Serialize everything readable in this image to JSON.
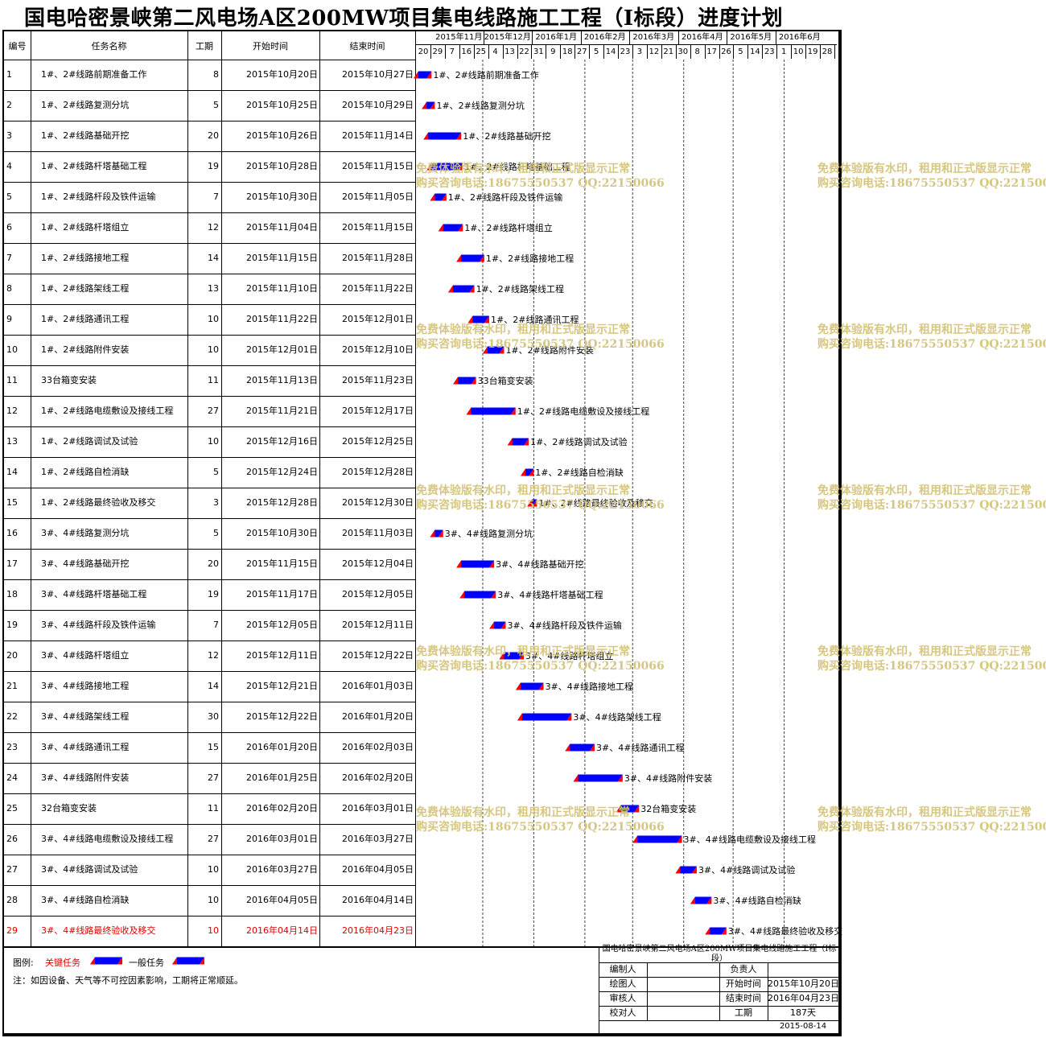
{
  "title": "国电哈密景峡第二风电场A区200MW项目集电线路施工工程（Ⅰ标段）进度计划",
  "headers": {
    "id": "编号",
    "name": "任务名称",
    "duration": "工期",
    "start": "开始时间",
    "end": "结束时间"
  },
  "months": [
    {
      "label": "2015年11月",
      "start": "2015-11-01"
    },
    {
      "label": "2015年12月",
      "start": "2015-12-01"
    },
    {
      "label": "2016年1月",
      "start": "2016-01-01"
    },
    {
      "label": "2016年2月",
      "start": "2016-02-01"
    },
    {
      "label": "2016年3月",
      "start": "2016-03-01"
    },
    {
      "label": "2016年4月",
      "start": "2016-04-01"
    },
    {
      "label": "2016年5月",
      "start": "2016-05-01"
    },
    {
      "label": "2016年6月",
      "start": "2016-06-01"
    }
  ],
  "day_ticks": [
    "20",
    "29",
    "7",
    "16",
    "25",
    "4",
    "13",
    "22",
    "31",
    "9",
    "18",
    "27",
    "5",
    "14",
    "23",
    "3",
    "12",
    "21",
    "30",
    "8",
    "17",
    "26",
    "5",
    "14",
    "23",
    "1",
    "10",
    "19",
    "28"
  ],
  "chart_data": {
    "type": "gantt",
    "x_range": [
      "2015-10-20",
      "2016-07-01"
    ],
    "tasks": [
      {
        "id": "1",
        "name": "1#、2#线路前期准备工作",
        "duration": "8",
        "start": "2015年10月20日",
        "end": "2015年10月27日",
        "s": "2015-10-20",
        "e": "2015-10-27",
        "critical": false
      },
      {
        "id": "2",
        "name": "1#、2#线路复测分坑",
        "duration": "5",
        "start": "2015年10月25日",
        "end": "2015年10月29日",
        "s": "2015-10-25",
        "e": "2015-10-29",
        "critical": false
      },
      {
        "id": "3",
        "name": "1#、2#线路基础开挖",
        "duration": "20",
        "start": "2015年10月26日",
        "end": "2015年11月14日",
        "s": "2015-10-26",
        "e": "2015-11-14",
        "critical": false
      },
      {
        "id": "4",
        "name": "1#、2#线路杆塔基础工程",
        "duration": "19",
        "start": "2015年10月28日",
        "end": "2015年11月15日",
        "s": "2015-10-28",
        "e": "2015-11-15",
        "critical": false
      },
      {
        "id": "5",
        "name": "1#、2#线路杆段及铁件运输",
        "duration": "7",
        "start": "2015年10月30日",
        "end": "2015年11月05日",
        "s": "2015-10-30",
        "e": "2015-11-05",
        "critical": false
      },
      {
        "id": "6",
        "name": "1#、2#线路杆塔组立",
        "duration": "12",
        "start": "2015年11月04日",
        "end": "2015年11月15日",
        "s": "2015-11-04",
        "e": "2015-11-15",
        "critical": false
      },
      {
        "id": "7",
        "name": "1#、2#线路接地工程",
        "duration": "14",
        "start": "2015年11月15日",
        "end": "2015年11月28日",
        "s": "2015-11-15",
        "e": "2015-11-28",
        "critical": false
      },
      {
        "id": "8",
        "name": "1#、2#线路架线工程",
        "duration": "13",
        "start": "2015年11月10日",
        "end": "2015年11月22日",
        "s": "2015-11-10",
        "e": "2015-11-22",
        "critical": false
      },
      {
        "id": "9",
        "name": "1#、2#线路通讯工程",
        "duration": "10",
        "start": "2015年11月22日",
        "end": "2015年12月01日",
        "s": "2015-11-22",
        "e": "2015-12-01",
        "critical": false
      },
      {
        "id": "10",
        "name": "1#、2#线路附件安装",
        "duration": "10",
        "start": "2015年12月01日",
        "end": "2015年12月10日",
        "s": "2015-12-01",
        "e": "2015-12-10",
        "critical": false
      },
      {
        "id": "11",
        "name": "33台箱变安装",
        "duration": "11",
        "start": "2015年11月13日",
        "end": "2015年11月23日",
        "s": "2015-11-13",
        "e": "2015-11-23",
        "critical": false
      },
      {
        "id": "12",
        "name": "1#、2#线路电缆敷设及接线工程",
        "duration": "27",
        "start": "2015年11月21日",
        "end": "2015年12月17日",
        "s": "2015-11-21",
        "e": "2015-12-17",
        "critical": false
      },
      {
        "id": "13",
        "name": "1#、2#线路调试及试验",
        "duration": "10",
        "start": "2015年12月16日",
        "end": "2015年12月25日",
        "s": "2015-12-16",
        "e": "2015-12-25",
        "critical": false
      },
      {
        "id": "14",
        "name": "1#、2#线路自检消缺",
        "duration": "5",
        "start": "2015年12月24日",
        "end": "2015年12月28日",
        "s": "2015-12-24",
        "e": "2015-12-28",
        "critical": false
      },
      {
        "id": "15",
        "name": "1#、2#线路最终验收及移交",
        "duration": "3",
        "start": "2015年12月28日",
        "end": "2015年12月30日",
        "s": "2015-12-28",
        "e": "2015-12-30",
        "critical": false
      },
      {
        "id": "16",
        "name": "3#、4#线路复测分坑",
        "duration": "5",
        "start": "2015年10月30日",
        "end": "2015年11月03日",
        "s": "2015-10-30",
        "e": "2015-11-03",
        "critical": false
      },
      {
        "id": "17",
        "name": "3#、4#线路基础开挖",
        "duration": "20",
        "start": "2015年11月15日",
        "end": "2015年12月04日",
        "s": "2015-11-15",
        "e": "2015-12-04",
        "critical": false
      },
      {
        "id": "18",
        "name": "3#、4#线路杆塔基础工程",
        "duration": "19",
        "start": "2015年11月17日",
        "end": "2015年12月05日",
        "s": "2015-11-17",
        "e": "2015-12-05",
        "critical": false
      },
      {
        "id": "19",
        "name": "3#、4#线路杆段及铁件运输",
        "duration": "7",
        "start": "2015年12月05日",
        "end": "2015年12月11日",
        "s": "2015-12-05",
        "e": "2015-12-11",
        "critical": false
      },
      {
        "id": "20",
        "name": "3#、4#线路杆塔组立",
        "duration": "12",
        "start": "2015年12月11日",
        "end": "2015年12月22日",
        "s": "2015-12-11",
        "e": "2015-12-22",
        "critical": false
      },
      {
        "id": "21",
        "name": "3#、4#线路接地工程",
        "duration": "14",
        "start": "2015年12月21日",
        "end": "2016年01月03日",
        "s": "2015-12-21",
        "e": "2016-01-03",
        "critical": false
      },
      {
        "id": "22",
        "name": "3#、4#线路架线工程",
        "duration": "30",
        "start": "2015年12月22日",
        "end": "2016年01月20日",
        "s": "2015-12-22",
        "e": "2016-01-20",
        "critical": false
      },
      {
        "id": "23",
        "name": "3#、4#线路通讯工程",
        "duration": "15",
        "start": "2016年01月20日",
        "end": "2016年02月03日",
        "s": "2016-01-20",
        "e": "2016-02-03",
        "critical": false
      },
      {
        "id": "24",
        "name": "3#、4#线路附件安装",
        "duration": "27",
        "start": "2016年01月25日",
        "end": "2016年02月20日",
        "s": "2016-01-25",
        "e": "2016-02-20",
        "critical": false
      },
      {
        "id": "25",
        "name": "32台箱变安装",
        "duration": "11",
        "start": "2016年02月20日",
        "end": "2016年03月01日",
        "s": "2016-02-20",
        "e": "2016-03-01",
        "critical": false
      },
      {
        "id": "26",
        "name": "3#、4#线路电缆敷设及接线工程",
        "duration": "27",
        "start": "2016年03月01日",
        "end": "2016年03月27日",
        "s": "2016-03-01",
        "e": "2016-03-27",
        "critical": false
      },
      {
        "id": "27",
        "name": "3#、4#线路调试及试验",
        "duration": "10",
        "start": "2016年03月27日",
        "end": "2016年04月05日",
        "s": "2016-03-27",
        "e": "2016-04-05",
        "critical": false
      },
      {
        "id": "28",
        "name": "3#、4#线路自检消缺",
        "duration": "10",
        "start": "2016年04月05日",
        "end": "2016年04月14日",
        "s": "2016-04-05",
        "e": "2016-04-14",
        "critical": false
      },
      {
        "id": "29",
        "name": "3#、4#线路最终验收及移交",
        "duration": "10",
        "start": "2016年04月14日",
        "end": "2016年04月23日",
        "s": "2016-04-14",
        "e": "2016-04-23",
        "critical": true
      }
    ]
  },
  "legend": {
    "label": "图例:",
    "critical": "关键任务",
    "normal": "一般任务",
    "note": "注：如因设备、天气等不可控因素影响，工期将正常顺延。"
  },
  "info_box": {
    "title": "国电哈密景峡第二风电场A区200MW项目集电线路施工工程（Ⅰ标段）",
    "rows": [
      {
        "k1": "编制人",
        "v1": "",
        "k2": "负责人",
        "v2": ""
      },
      {
        "k1": "绘图人",
        "v1": "",
        "k2": "开始时间",
        "v2": "2015年10月20日"
      },
      {
        "k1": "审核人",
        "v1": "",
        "k2": "结束时间",
        "v2": "2016年04月23日"
      },
      {
        "k1": "校对人",
        "v1": "",
        "k2": "工期",
        "v2": "187天"
      }
    ],
    "date": "2015-08-14"
  },
  "watermark": {
    "line1": "免费体验版有水印，租用和正式版显示正常",
    "line2": "购买咨询电话:18675550537 QQ:22150066"
  },
  "colors": {
    "bar": "#0000ff",
    "bar_end": "#ff0000",
    "critical_text": "#e00000",
    "watermark": "#d4c47a"
  }
}
